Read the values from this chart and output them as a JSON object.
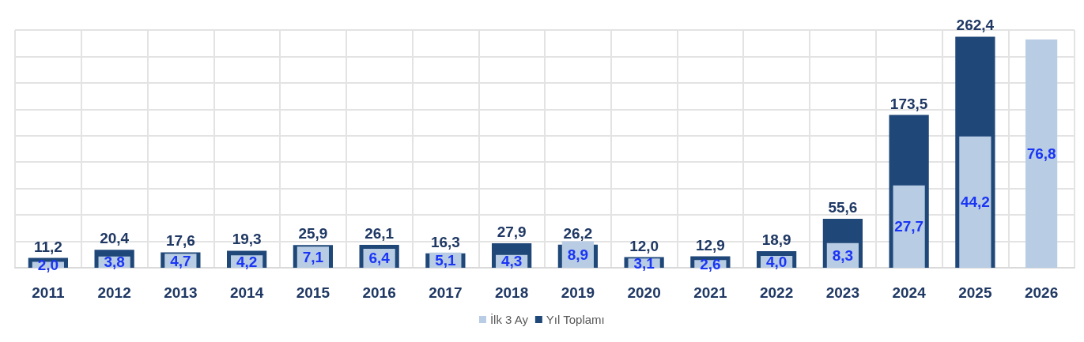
{
  "chart_data": {
    "type": "bar",
    "categories": [
      "2011",
      "2012",
      "2013",
      "2014",
      "2015",
      "2016",
      "2017",
      "2018",
      "2019",
      "2020",
      "2021",
      "2022",
      "2023",
      "2024",
      "2025",
      "2026"
    ],
    "series": [
      {
        "name": "Yıl Toplamı",
        "color": "#1f4778",
        "values": [
          11.2,
          20.4,
          17.6,
          19.3,
          25.9,
          26.1,
          16.3,
          27.9,
          26.2,
          12.0,
          12.9,
          18.9,
          55.6,
          173.5,
          262.4,
          null
        ],
        "value_labels": [
          "11,2",
          "20,4",
          "17,6",
          "19,3",
          "25,9",
          "26,1",
          "16,3",
          "27,9",
          "26,2",
          "12,0",
          "12,9",
          "18,9",
          "55,6",
          "173,5",
          "262,4",
          null
        ]
      },
      {
        "name": "İlk 3 Ay",
        "color": "#b8cce4",
        "axis": "y2",
        "values": [
          2.0,
          3.8,
          4.7,
          4.2,
          7.1,
          6.4,
          5.1,
          4.3,
          8.9,
          3.1,
          2.6,
          4.0,
          8.3,
          27.7,
          44.2,
          76.8
        ],
        "value_labels": [
          "2,0",
          "3,8",
          "4,7",
          "4,2",
          "7,1",
          "6,4",
          "5,1",
          "4,3",
          "8,9",
          "3,1",
          "2,6",
          "4,0",
          "8,3",
          "27,7",
          "44,2",
          "76,8"
        ]
      }
    ],
    "tick_labels": "x",
    "grid": true,
    "legend": "bottom"
  }
}
